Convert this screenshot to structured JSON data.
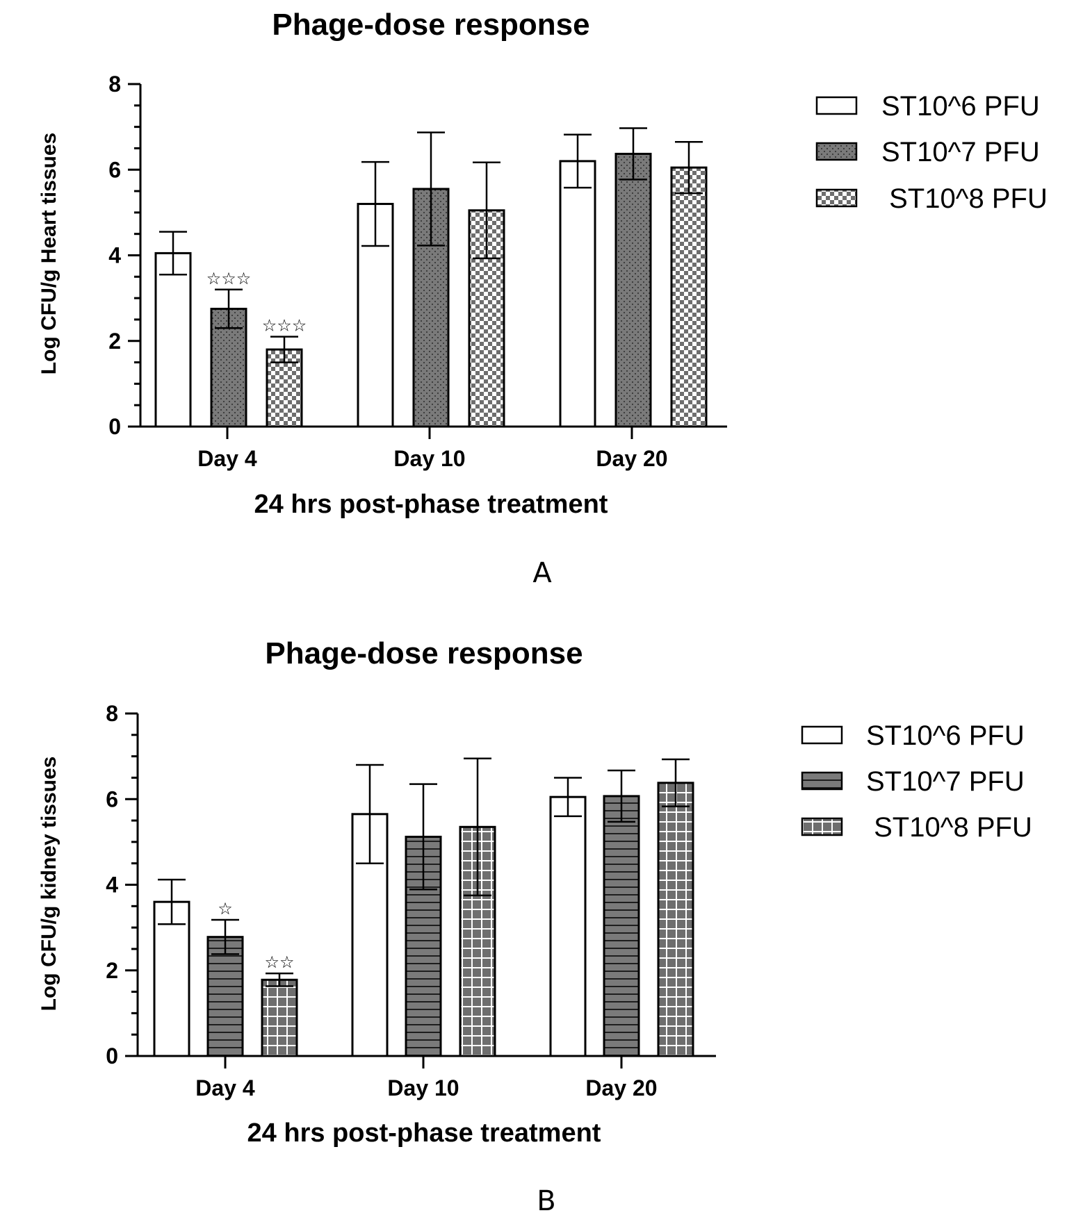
{
  "chart_data": [
    {
      "type": "bar",
      "title": "Phage-dose response",
      "panel_label": "A",
      "xlabel": "24 hrs post-phase treatment",
      "ylabel": "Log CFU/g Heart tissues",
      "ylim": [
        0,
        8
      ],
      "yticks": [
        "0",
        "2",
        "4",
        "6",
        "8"
      ],
      "categories": [
        "Day 4",
        "Day 10",
        "Day 20"
      ],
      "legend_position": "right",
      "grid": false,
      "series": [
        {
          "name": "ST10^6 PFU",
          "pattern": "none",
          "values": [
            4.05,
            5.2,
            6.2
          ],
          "errors": [
            0.5,
            0.98,
            0.62
          ]
        },
        {
          "name": "ST10^7 PFU",
          "pattern": "dots",
          "values": [
            2.75,
            5.55,
            6.37
          ],
          "errors": [
            0.45,
            1.32,
            0.6
          ]
        },
        {
          "name": " ST10^8 PFU",
          "pattern": "checker",
          "values": [
            1.8,
            5.05,
            6.05
          ],
          "errors": [
            0.3,
            1.12,
            0.6
          ]
        }
      ],
      "annotations": [
        {
          "category": "Day 4",
          "series": 1,
          "text": "☆☆☆"
        },
        {
          "category": "Day 4",
          "series": 2,
          "text": "☆☆☆"
        }
      ]
    },
    {
      "type": "bar",
      "title": "Phage-dose response",
      "panel_label": "B",
      "xlabel": "24 hrs post-phase treatment",
      "ylabel": "Log CFU/g kidney tissues",
      "ylim": [
        0,
        8
      ],
      "yticks": [
        "0",
        "2",
        "4",
        "6",
        "8"
      ],
      "categories": [
        "Day 4",
        "Day 10",
        "Day 20"
      ],
      "legend_position": "right",
      "grid": false,
      "series": [
        {
          "name": "ST10^6 PFU",
          "pattern": "none",
          "values": [
            3.6,
            5.65,
            6.05
          ],
          "errors": [
            0.52,
            1.15,
            0.45
          ]
        },
        {
          "name": "ST10^7 PFU",
          "pattern": "hlines",
          "values": [
            2.78,
            5.12,
            6.07
          ],
          "errors": [
            0.4,
            1.23,
            0.6
          ]
        },
        {
          "name": " ST10^8 PFU",
          "pattern": "grid",
          "values": [
            1.78,
            5.35,
            6.38
          ],
          "errors": [
            0.15,
            1.6,
            0.55
          ]
        }
      ],
      "annotations": [
        {
          "category": "Day 4",
          "series": 1,
          "text": "☆"
        },
        {
          "category": "Day 4",
          "series": 2,
          "text": "☆☆"
        }
      ]
    }
  ],
  "colors": {
    "axis": "#000000",
    "fill_light": "#ffffff",
    "fill_dark": "#7a7a7a",
    "pattern_mark": "#2a2a2a",
    "pattern_light_mark": "#ffffff"
  }
}
